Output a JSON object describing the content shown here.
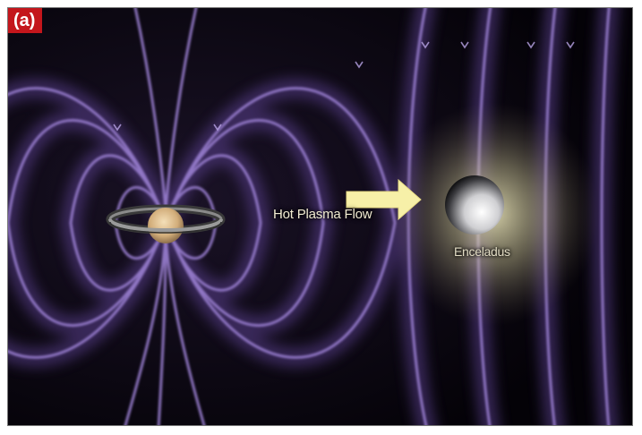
{
  "panel": {
    "label": "(a)"
  },
  "flow": {
    "label": "Hot Plasma Flow"
  },
  "moon": {
    "name": "Enceladus"
  },
  "colors": {
    "field_lines": "#9a7fd0",
    "field_glow": "#5a3f8e",
    "background": "#050308",
    "arrow": "#f7f0a8",
    "badge": "#c4161c",
    "halo": "#f4efc0",
    "planet": "#d9b98a"
  },
  "icons": [
    "saturn-icon",
    "enceladus-icon",
    "plasma-flow-arrow-icon"
  ]
}
